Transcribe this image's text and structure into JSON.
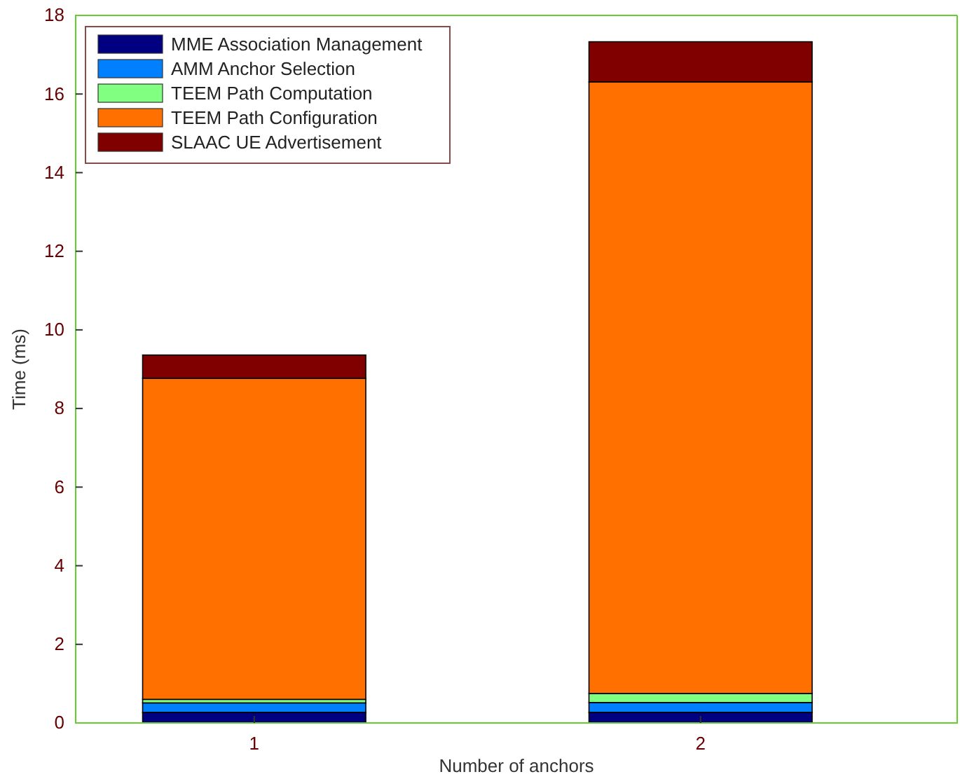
{
  "chart_data": {
    "type": "bar",
    "stacked": true,
    "xlabel": "Number of anchors",
    "ylabel": "Time (ms)",
    "categories": [
      "1",
      "2"
    ],
    "series": [
      {
        "name": "MME Association Management",
        "color": "#000080",
        "values": [
          0.27,
          0.27
        ]
      },
      {
        "name": "AMM Anchor Selection",
        "color": "#0080ff",
        "values": [
          0.24,
          0.25
        ]
      },
      {
        "name": "TEEM Path Computation",
        "color": "#80ff80",
        "values": [
          0.09,
          0.23
        ]
      },
      {
        "name": "TEEM Path Configuration",
        "color": "#ff7000",
        "values": [
          8.17,
          15.56
        ]
      },
      {
        "name": "SLAAC UE Advertisement",
        "color": "#800000",
        "values": [
          0.59,
          1.02
        ]
      }
    ],
    "ylim": [
      0,
      18
    ],
    "yticks": [
      0,
      2,
      4,
      6,
      8,
      10,
      12,
      14,
      16,
      18
    ],
    "grid": false,
    "legend": "top left"
  }
}
